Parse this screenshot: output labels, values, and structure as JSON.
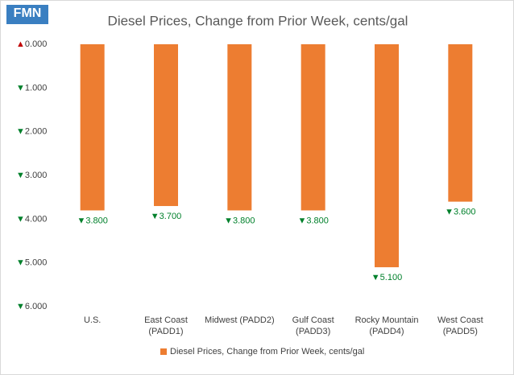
{
  "logo": "FMN",
  "chart_data": {
    "type": "bar",
    "title": "Diesel Prices, Change from Prior Week, cents/gal",
    "categories": [
      "U.S.",
      "East Coast\n(PADD1)",
      "Midwest (PADD2)",
      "Gulf Coast\n(PADD3)",
      "Rocky Mountain\n(PADD4)",
      "West Coast\n(PADD5)"
    ],
    "series": [
      {
        "name": "Diesel Prices, Change from Prior Week, cents/gal",
        "color": "#ed7d31",
        "values": [
          -3.8,
          -3.7,
          -3.8,
          -3.8,
          -5.1,
          -3.6
        ],
        "value_labels": [
          "▼3.800",
          "▼3.700",
          "▼3.800",
          "▼3.800",
          "▼5.100",
          "▼3.600"
        ]
      }
    ],
    "ylim": [
      0,
      -6
    ],
    "yticks": [
      {
        "value": 0,
        "label": "▲0.000"
      },
      {
        "value": -1,
        "label": "▼1.000"
      },
      {
        "value": -2,
        "label": "▼2.000"
      },
      {
        "value": -3,
        "label": "▼3.000"
      },
      {
        "value": -4,
        "label": "▼4.000"
      },
      {
        "value": -5,
        "label": "▼5.000"
      },
      {
        "value": -6,
        "label": "▼6.000"
      }
    ],
    "grid": false,
    "legend": "bottom"
  }
}
